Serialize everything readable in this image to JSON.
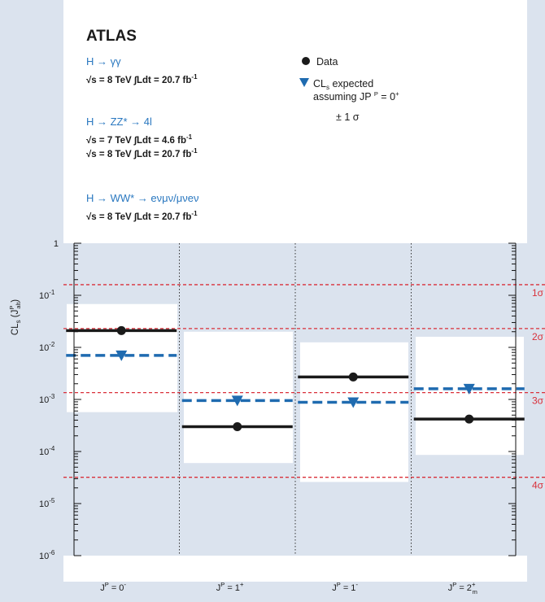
{
  "colors": {
    "background": "#dbe3ee",
    "frame": "#ffffff",
    "band": "#ffffff",
    "data": "#1a1a1a",
    "expected": "#1f6bb0",
    "sigma_line": "#d9303a",
    "channel_text": "#2a78c0"
  },
  "chart_data": {
    "type": "scatter",
    "title": "ATLAS",
    "ylabel": "CLs (JPalt)",
    "yscale": "log",
    "ylim": [
      1e-06,
      1
    ],
    "yticks": [
      {
        "value": 1,
        "label": "1"
      },
      {
        "value": 0.1,
        "label": "10-1"
      },
      {
        "value": 0.01,
        "label": "10-2"
      },
      {
        "value": 0.001,
        "label": "10-3"
      },
      {
        "value": 0.0001,
        "label": "10-4"
      },
      {
        "value": 1e-05,
        "label": "10-5"
      },
      {
        "value": 1e-06,
        "label": "10-6"
      }
    ],
    "categories": [
      "JP = 0-",
      "JP = 1+",
      "JP = 1-",
      "JP = 2+m"
    ],
    "series": [
      {
        "name": "Data",
        "values": [
          0.021,
          0.0003,
          0.0027,
          0.00042
        ]
      },
      {
        "name": "CLs expected assuming JP = 0+",
        "values": [
          0.007,
          0.00095,
          0.00088,
          0.0016
        ]
      }
    ],
    "bands": [
      {
        "low": 0.00057,
        "high": 0.068
      },
      {
        "low": 6e-05,
        "high": 0.02
      },
      {
        "low": 2.6e-05,
        "high": 0.0125
      },
      {
        "low": 8.6e-05,
        "high": 0.016
      }
    ],
    "sigma_lines": [
      {
        "label": "1σ",
        "value": 0.16
      },
      {
        "label": "2σ",
        "value": 0.023
      },
      {
        "label": "3σ",
        "value": 0.00135
      },
      {
        "label": "4σ",
        "value": 3.2e-05
      }
    ],
    "channels": [
      {
        "name": "H → γγ",
        "energies": [
          "√s = 8 TeV ∫Ldt = 20.7 fb-1"
        ]
      },
      {
        "name": "H → ZZ* → 4l",
        "energies": [
          "√s = 7 TeV ∫Ldt = 4.6 fb-1",
          "√s = 8 TeV ∫Ldt = 20.7 fb-1"
        ]
      },
      {
        "name": "H → WW* → eνμν/μνeν",
        "energies": [
          "√s = 8 TeV ∫Ldt = 20.7 fb-1"
        ]
      }
    ],
    "legend": {
      "position": "top-right",
      "data_label": "Data",
      "expected_line1": "CLs expected",
      "expected_line2": "assuming JP = 0+",
      "band_label": "± 1 σ"
    }
  }
}
